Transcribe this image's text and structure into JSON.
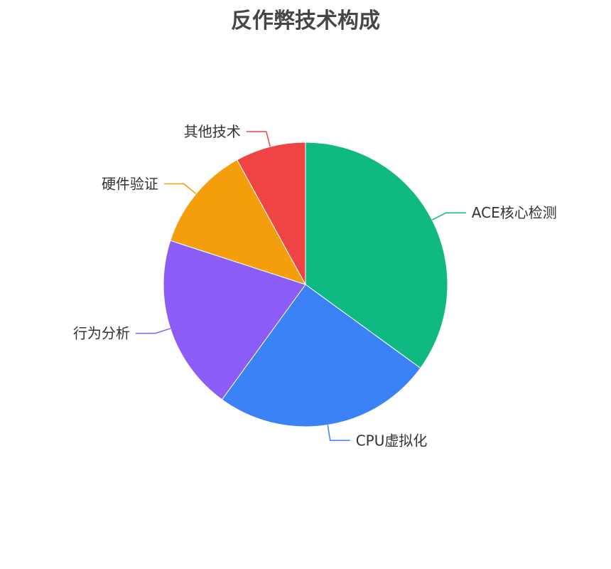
{
  "chart_data": {
    "type": "pie",
    "title": "反作弊技术构成",
    "legend": "none",
    "start_angle": "top, clockwise",
    "slices": [
      {
        "label": "ACE核心检测",
        "value": 35,
        "color": "#10b981"
      },
      {
        "label": "CPU虚拟化",
        "value": 25,
        "color": "#3b82f6"
      },
      {
        "label": "行为分析",
        "value": 20,
        "color": "#8b5cf6"
      },
      {
        "label": "硬件验证",
        "value": 12,
        "color": "#f59e0b"
      },
      {
        "label": "其他技术",
        "value": 8,
        "color": "#ef4444"
      }
    ]
  }
}
